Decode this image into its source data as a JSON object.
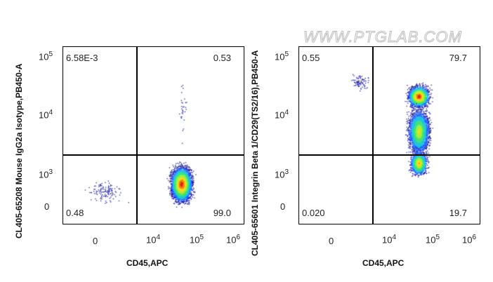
{
  "watermark": "WWW.PTGLAB.COM",
  "chart_data": [
    {
      "type": "scatter",
      "subtype": "flow-cytometry-density-plot",
      "xlabel": "CD45,APC",
      "ylabel": "CL405-65208 Mouse IgG2a Isotype,PB450-A",
      "x_ticks": [
        "0",
        "10^4",
        "10^5",
        "10^6"
      ],
      "y_ticks": [
        "0",
        "10^3",
        "10^4",
        "10^5"
      ],
      "quadrants": {
        "UL": "6.58E-3",
        "UR": "0.53",
        "LL": "0.48",
        "LR": "99.0"
      },
      "population": "single cluster CD45+ low PB450 (~x 5e4, y ~8e2)"
    },
    {
      "type": "scatter",
      "subtype": "flow-cytometry-density-plot",
      "xlabel": "CD45,APC",
      "ylabel": "CL405-65601 Integrin Beta 1/CD29(TS2/16),PB450-A",
      "x_ticks": [
        "0",
        "10^4",
        "10^5",
        "10^6"
      ],
      "y_ticks": [
        "0",
        "10^3",
        "10^4",
        "10^5"
      ],
      "quadrants": {
        "UL": "0.55",
        "UR": "79.7",
        "LL": "0.020",
        "LR": "19.7"
      },
      "population": "vertical CD45+ population spanning PB450 ~1e3 to ~3e4, peak near 2e4"
    }
  ],
  "plots": [
    {
      "ylabel": "CL405-65208 Mouse IgG2a Isotype,PB450-A",
      "xlabel": "CD45,APC",
      "q": {
        "ul": "6.58E-3",
        "ur": "0.53",
        "ll": "0.48",
        "lr": "99.0"
      }
    },
    {
      "ylabel": "CL405-65601 Integrin Beta 1/CD29(TS2/16),PB450-A",
      "xlabel": "CD45,APC",
      "q": {
        "ul": "0.55",
        "ur": "79.7",
        "ll": "0.020",
        "lr": "19.7"
      }
    }
  ],
  "ticks": {
    "x0": "0",
    "xb": "10",
    "e4": "4",
    "e5": "5",
    "e6": "6",
    "e3": "3"
  }
}
